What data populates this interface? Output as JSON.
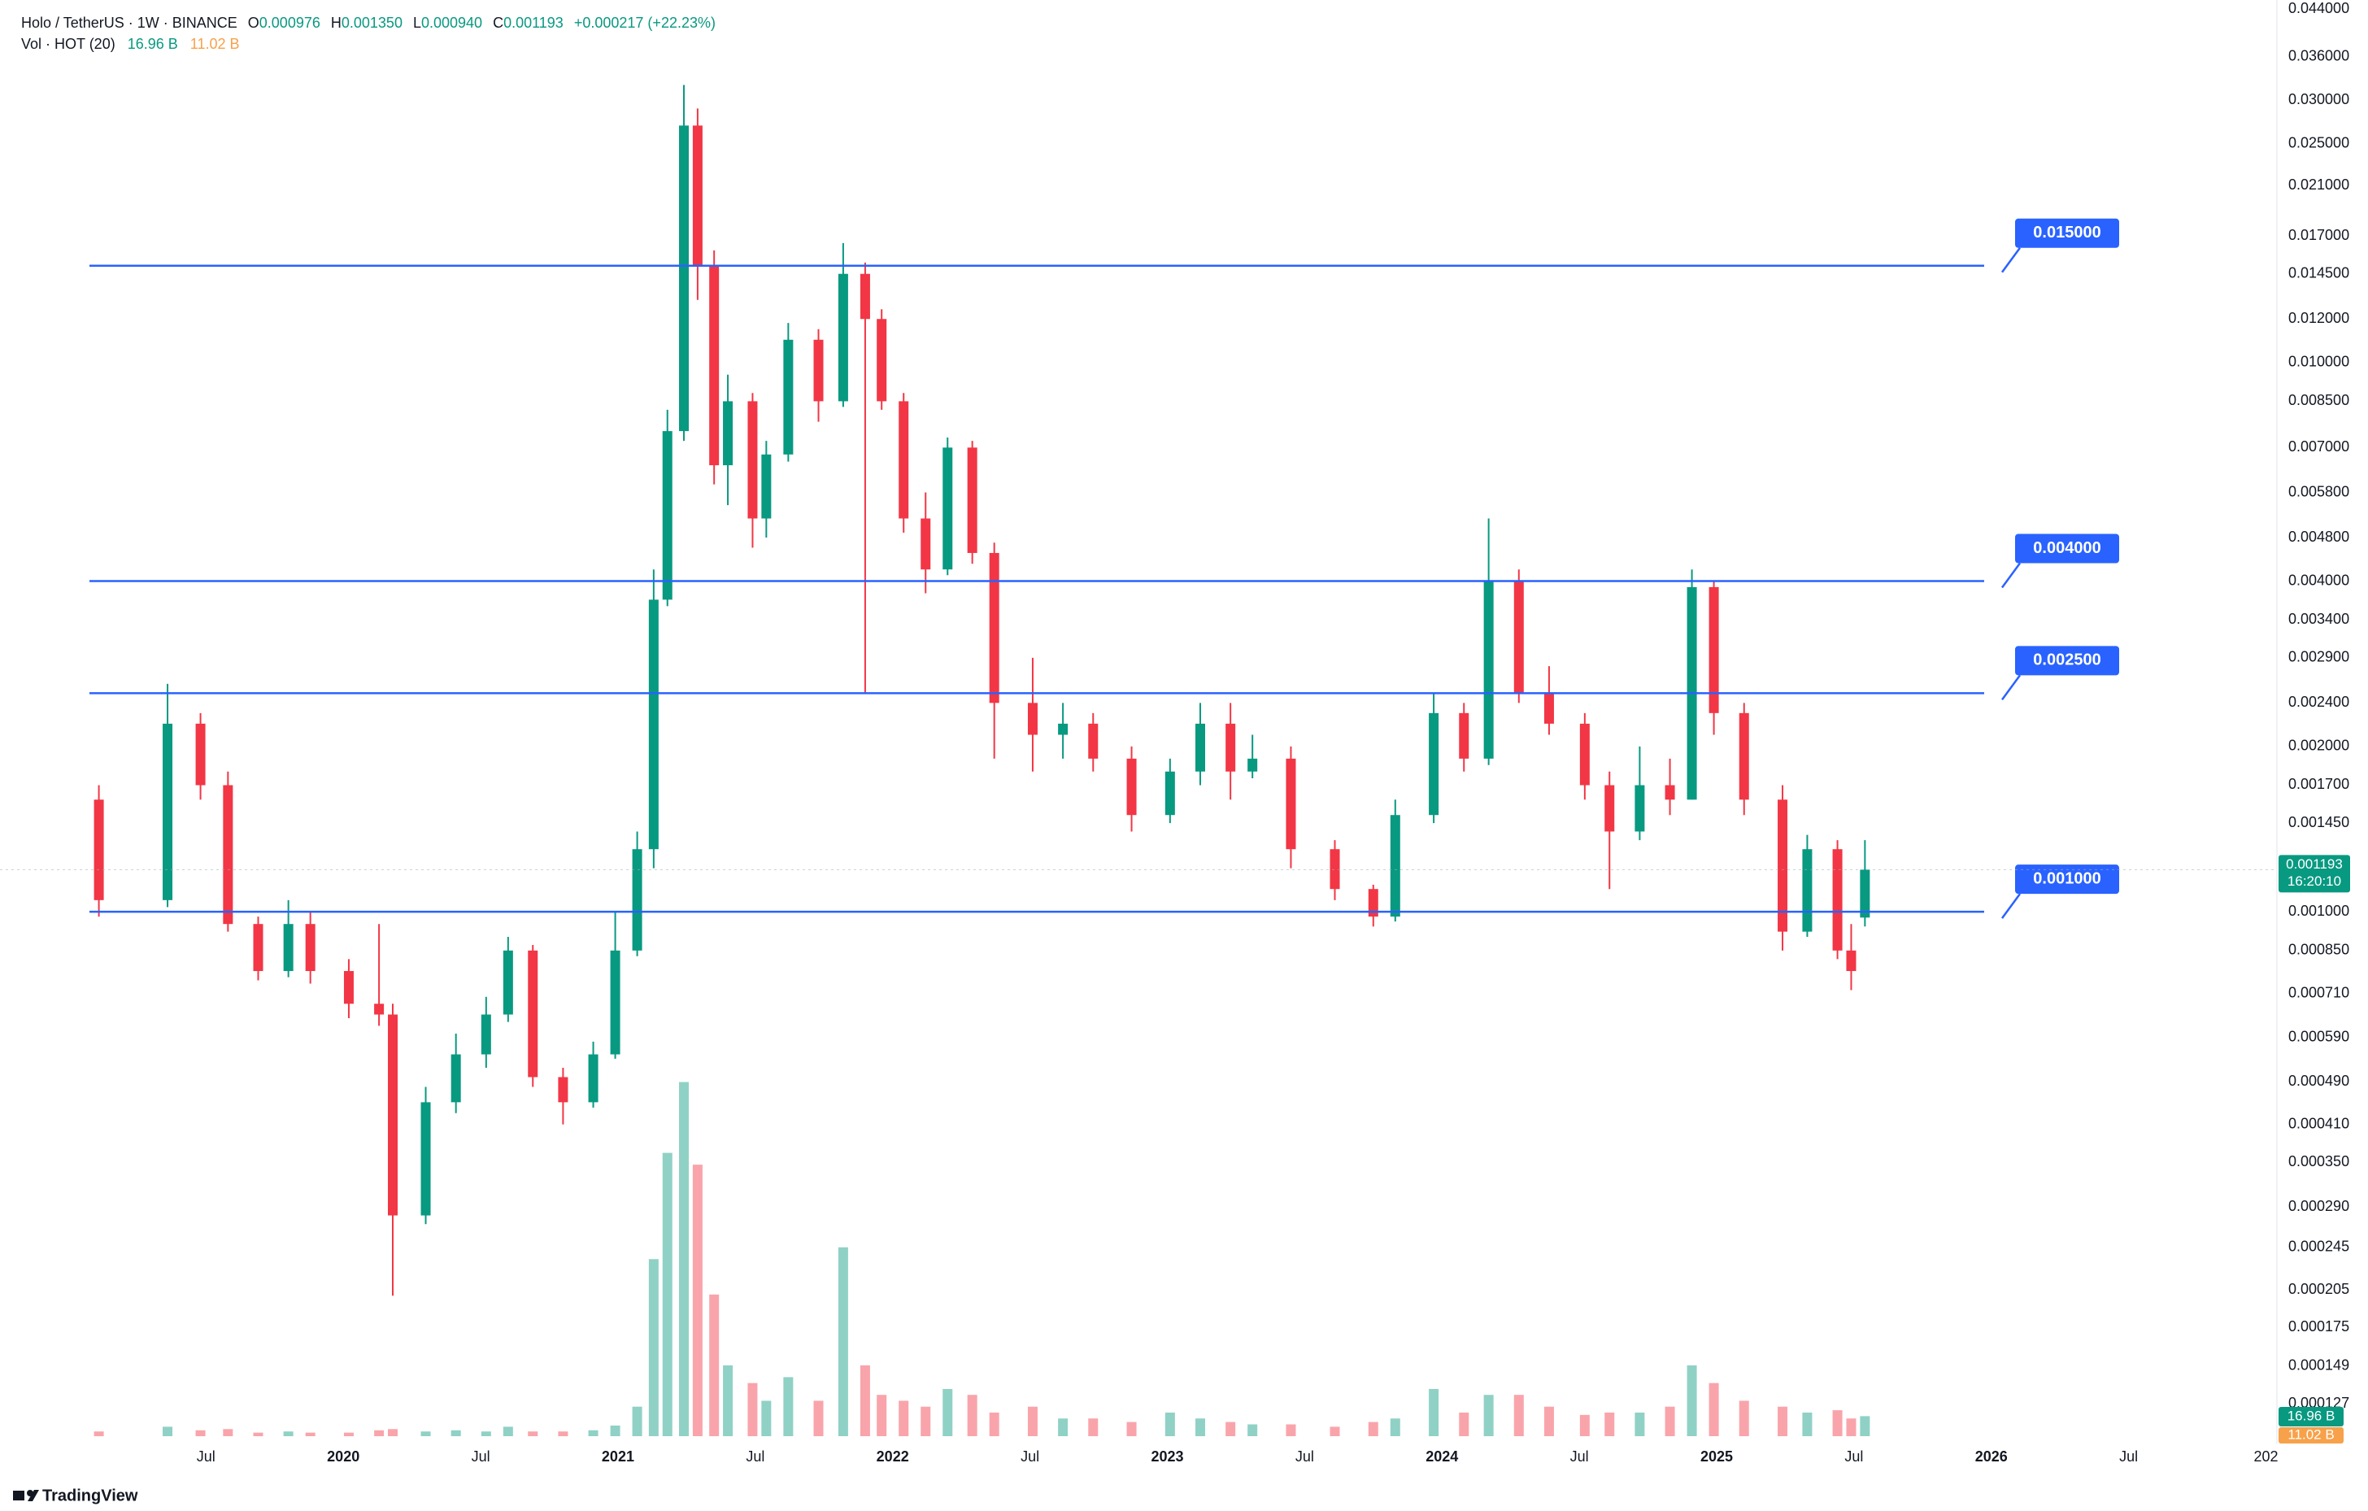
{
  "header": {
    "symbol": "Holo / TetherUS · 1W · BINANCE",
    "ohlc": [
      {
        "key": "O",
        "value": "0.000976"
      },
      {
        "key": "H",
        "value": "0.001350"
      },
      {
        "key": "L",
        "value": "0.000940"
      },
      {
        "key": "C",
        "value": "0.001193"
      }
    ],
    "change": "+0.000217 (+22.23%)",
    "volume_title": "Vol · HOT (20)",
    "volume_values": [
      "16.96 B",
      "11.02 B"
    ]
  },
  "footer": {
    "brand": "TradingView"
  },
  "chart_data": {
    "type": "candlestick",
    "log_scale": true,
    "grid": false,
    "up_color": "#089981",
    "down_color": "#f23645",
    "line_color": "#2962ff",
    "x": [
      2019.11,
      2019.36,
      2019.48,
      2019.58,
      2019.69,
      2019.8,
      2019.88,
      2020.02,
      2020.13,
      2020.18,
      2020.3,
      2020.41,
      2020.52,
      2020.6,
      2020.69,
      2020.8,
      2020.91,
      2020.99,
      2021.07,
      2021.13,
      2021.18,
      2021.24,
      2021.29,
      2021.35,
      2021.4,
      2021.49,
      2021.54,
      2021.62,
      2021.73,
      2021.82,
      2021.9,
      2021.96,
      2022.04,
      2022.12,
      2022.2,
      2022.29,
      2022.37,
      2022.51,
      2022.62,
      2022.73,
      2022.87,
      2023.01,
      2023.12,
      2023.23,
      2023.31,
      2023.45,
      2023.61,
      2023.75,
      2023.83,
      2023.97,
      2024.08,
      2024.17,
      2024.28,
      2024.39,
      2024.52,
      2024.61,
      2024.72,
      2024.83,
      2024.91,
      2024.99,
      2025.1,
      2025.24,
      2025.33,
      2025.44,
      2025.49,
      2025.54
    ],
    "open": [
      0.0016,
      0.00105,
      0.0022,
      0.0017,
      0.00095,
      0.00078,
      0.00095,
      0.00078,
      0.00068,
      0.00065,
      0.00028,
      0.00045,
      0.00055,
      0.00065,
      0.00085,
      0.0005,
      0.00045,
      0.00055,
      0.00085,
      0.0013,
      0.0037,
      0.0075,
      0.027,
      0.015,
      0.0065,
      0.0085,
      0.0052,
      0.0068,
      0.011,
      0.0085,
      0.0145,
      0.012,
      0.0085,
      0.0052,
      0.0042,
      0.007,
      0.0045,
      0.0024,
      0.0021,
      0.0022,
      0.0019,
      0.0015,
      0.0018,
      0.0022,
      0.0018,
      0.0019,
      0.0013,
      0.0011,
      0.00098,
      0.0015,
      0.0023,
      0.0019,
      0.004,
      0.0025,
      0.0022,
      0.0017,
      0.0014,
      0.0017,
      0.0016,
      0.0039,
      0.0023,
      0.0016,
      0.00092,
      0.0013,
      0.00085,
      0.000976
    ],
    "high": [
      0.0017,
      0.0026,
      0.0023,
      0.0018,
      0.00098,
      0.00105,
      0.001,
      0.00082,
      0.00095,
      0.00068,
      0.00048,
      0.0006,
      0.0007,
      0.0009,
      0.00087,
      0.00052,
      0.00058,
      0.001,
      0.0014,
      0.0042,
      0.0082,
      0.032,
      0.029,
      0.016,
      0.0095,
      0.0088,
      0.0072,
      0.0118,
      0.0115,
      0.0165,
      0.0152,
      0.0125,
      0.0088,
      0.0058,
      0.0073,
      0.0072,
      0.0047,
      0.0029,
      0.0024,
      0.0023,
      0.002,
      0.0019,
      0.0024,
      0.0024,
      0.0021,
      0.002,
      0.00135,
      0.00112,
      0.0016,
      0.0025,
      0.0024,
      0.0052,
      0.0042,
      0.0028,
      0.0023,
      0.0018,
      0.002,
      0.0019,
      0.0042,
      0.004,
      0.0024,
      0.0017,
      0.00138,
      0.00135,
      0.00095,
      0.00135
    ],
    "low": [
      0.00098,
      0.00102,
      0.0016,
      0.00092,
      0.00075,
      0.00076,
      0.00074,
      0.00064,
      0.00062,
      0.0002,
      0.00027,
      0.00043,
      0.00052,
      0.00063,
      0.00048,
      0.00041,
      0.00044,
      0.00054,
      0.00083,
      0.0012,
      0.0036,
      0.0072,
      0.013,
      0.006,
      0.0055,
      0.0046,
      0.0048,
      0.0066,
      0.0078,
      0.0083,
      0.0025,
      0.0082,
      0.0049,
      0.0038,
      0.0041,
      0.0043,
      0.0019,
      0.0018,
      0.0019,
      0.0018,
      0.0014,
      0.00145,
      0.0017,
      0.0016,
      0.00175,
      0.0012,
      0.00105,
      0.00094,
      0.00096,
      0.00145,
      0.0018,
      0.00185,
      0.0024,
      0.0021,
      0.0016,
      0.0011,
      0.00135,
      0.0015,
      0.0016,
      0.0021,
      0.0015,
      0.00085,
      0.0009,
      0.00082,
      0.00072,
      0.00094
    ],
    "close": [
      0.00105,
      0.0022,
      0.0017,
      0.00095,
      0.00078,
      0.00095,
      0.00078,
      0.00068,
      0.00065,
      0.00028,
      0.00045,
      0.00055,
      0.00065,
      0.00085,
      0.0005,
      0.00045,
      0.00055,
      0.00085,
      0.0013,
      0.0037,
      0.0075,
      0.027,
      0.015,
      0.0065,
      0.0085,
      0.0052,
      0.0068,
      0.011,
      0.0085,
      0.0145,
      0.012,
      0.0085,
      0.0052,
      0.0042,
      0.007,
      0.0045,
      0.0024,
      0.0021,
      0.0022,
      0.0019,
      0.0015,
      0.0018,
      0.0022,
      0.0018,
      0.0019,
      0.0013,
      0.0011,
      0.00098,
      0.0015,
      0.0023,
      0.0019,
      0.004,
      0.0025,
      0.0022,
      0.0017,
      0.0014,
      0.0017,
      0.0016,
      0.0039,
      0.0023,
      0.0016,
      0.00092,
      0.0013,
      0.00085,
      0.00078,
      0.001193
    ],
    "volume": [
      4,
      8,
      5,
      6,
      3,
      4,
      3,
      3,
      5,
      6,
      4,
      5,
      4,
      8,
      4,
      4,
      5,
      9,
      25,
      150,
      240,
      300,
      230,
      120,
      60,
      45,
      30,
      50,
      30,
      160,
      60,
      35,
      30,
      25,
      40,
      35,
      20,
      25,
      15,
      15,
      12,
      20,
      15,
      12,
      10,
      10,
      8,
      12,
      15,
      40,
      20,
      35,
      35,
      25,
      18,
      20,
      20,
      25,
      60,
      45,
      30,
      25,
      20,
      22,
      15,
      16.96
    ],
    "volume_lim": [
      0,
      310
    ],
    "xlim": [
      2018.75,
      2027.04
    ],
    "xticks": [
      {
        "value": 2019.5,
        "label": "Jul"
      },
      2020,
      {
        "value": 2020.5,
        "label": "Jul"
      },
      2021,
      {
        "value": 2021.5,
        "label": "Jul"
      },
      2022,
      {
        "value": 2022.5,
        "label": "Jul"
      },
      2023,
      {
        "value": 2023.5,
        "label": "Jul"
      },
      2024,
      {
        "value": 2024.5,
        "label": "Jul"
      },
      2025,
      {
        "value": 2025.5,
        "label": "Jul"
      },
      2026,
      {
        "value": 2026.5,
        "label": "Jul"
      },
      {
        "value": 2027,
        "label": "202"
      }
    ],
    "ylim": [
      0.000108,
      0.0457
    ],
    "yticks": [
      {
        "value": 0.044,
        "label": "0.044000"
      },
      {
        "value": 0.036,
        "label": "0.036000"
      },
      {
        "value": 0.03,
        "label": "0.030000"
      },
      {
        "value": 0.025,
        "label": "0.025000"
      },
      {
        "value": 0.021,
        "label": "0.021000"
      },
      {
        "value": 0.017,
        "label": "0.017000"
      },
      {
        "value": 0.0145,
        "label": "0.014500"
      },
      {
        "value": 0.012,
        "label": "0.012000"
      },
      {
        "value": 0.01,
        "label": "0.010000"
      },
      {
        "value": 0.0085,
        "label": "0.008500"
      },
      {
        "value": 0.007,
        "label": "0.007000"
      },
      {
        "value": 0.0058,
        "label": "0.005800"
      },
      {
        "value": 0.0048,
        "label": "0.004800"
      },
      {
        "value": 0.004,
        "label": "0.004000"
      },
      {
        "value": 0.0034,
        "label": "0.003400"
      },
      {
        "value": 0.0029,
        "label": "0.002900"
      },
      {
        "value": 0.0024,
        "label": "0.002400"
      },
      {
        "value": 0.002,
        "label": "0.002000"
      },
      {
        "value": 0.0017,
        "label": "0.001700"
      },
      {
        "value": 0.00145,
        "label": "0.001450"
      },
      {
        "value": 0.001,
        "label": "0.001000"
      },
      {
        "value": 0.00085,
        "label": "0.000850"
      },
      {
        "value": 0.00071,
        "label": "0.000710"
      },
      {
        "value": 0.00059,
        "label": "0.000590"
      },
      {
        "value": 0.00049,
        "label": "0.000490"
      },
      {
        "value": 0.00041,
        "label": "0.000410"
      },
      {
        "value": 0.00035,
        "label": "0.000350"
      },
      {
        "value": 0.00029,
        "label": "0.000290"
      },
      {
        "value": 0.000245,
        "label": "0.000245"
      },
      {
        "value": 0.000205,
        "label": "0.000205"
      },
      {
        "value": 0.000175,
        "label": "0.000175"
      },
      {
        "value": 0.000149,
        "label": "0.000149"
      },
      {
        "value": 0.000127,
        "label": "0.000127"
      }
    ],
    "hlines": [
      {
        "value": 0.015,
        "label": "0.015000"
      },
      {
        "value": 0.004,
        "label": "0.004000"
      },
      {
        "value": 0.0025,
        "label": "0.002500"
      },
      {
        "value": 0.001,
        "label": "0.001000"
      }
    ],
    "last_price": 0.001193,
    "countdown": "16:20:10"
  }
}
